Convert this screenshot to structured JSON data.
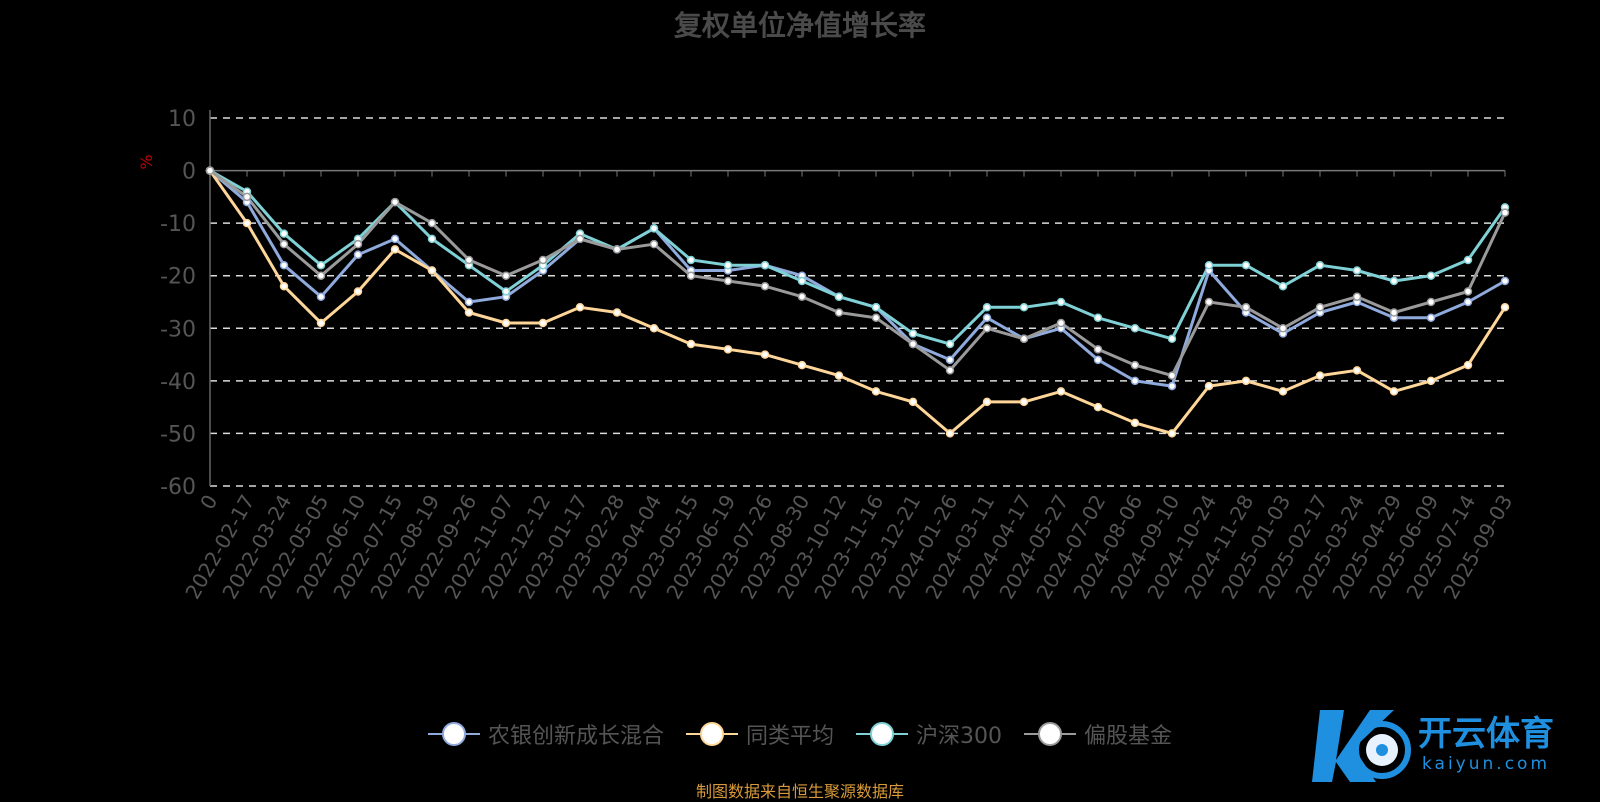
{
  "chart_data": {
    "type": "line",
    "title": "复权单位净值增长率",
    "ylabel": "%",
    "ylim": [
      -60,
      10
    ],
    "yticks": [
      10,
      0,
      -10,
      -20,
      -30,
      -40,
      -50,
      -60
    ],
    "grid": true,
    "x": [
      "0",
      "2022-02-17",
      "2022-03-24",
      "2022-05-05",
      "2022-06-10",
      "2022-07-15",
      "2022-08-19",
      "2022-09-26",
      "2022-11-07",
      "2022-12-12",
      "2023-01-17",
      "2023-02-28",
      "2023-04-04",
      "2023-05-15",
      "2023-06-19",
      "2023-07-26",
      "2023-08-30",
      "2023-10-12",
      "2023-11-16",
      "2023-12-21",
      "2024-01-26",
      "2024-03-11",
      "2024-04-17",
      "2024-05-27",
      "2024-07-02",
      "2024-08-06",
      "2024-09-10",
      "2024-10-24",
      "2024-11-28",
      "2025-01-03",
      "2025-02-17",
      "2025-03-24",
      "2025-04-29",
      "2025-06-09",
      "2025-07-14",
      "2025-09-03"
    ],
    "series": [
      {
        "name": "农银创新成长混合",
        "color": "#8faadc",
        "values": [
          0,
          -6,
          -18,
          -24,
          -16,
          -13,
          -19,
          -25,
          -24,
          -19,
          -13,
          -15,
          -11,
          -19,
          -19,
          -18,
          -20,
          -24,
          -26,
          -33,
          -36,
          -28,
          -32,
          -30,
          -36,
          -40,
          -41,
          -19,
          -27,
          -31,
          -27,
          -25,
          -28,
          -28,
          -25,
          -21
        ]
      },
      {
        "name": "同类平均",
        "color": "#ffd699",
        "values": [
          0,
          -10,
          -22,
          -29,
          -23,
          -15,
          -19,
          -27,
          -29,
          -29,
          -26,
          -27,
          -30,
          -33,
          -34,
          -35,
          -37,
          -39,
          -42,
          -44,
          -50,
          -44,
          -44,
          -42,
          -45,
          -48,
          -50,
          -41,
          -40,
          -42,
          -39,
          -38,
          -42,
          -40,
          -37,
          -26
        ]
      },
      {
        "name": "沪深300",
        "color": "#7fd1d6",
        "values": [
          0,
          -4,
          -12,
          -18,
          -13,
          -6,
          -13,
          -18,
          -23,
          -18,
          -12,
          -15,
          -11,
          -17,
          -18,
          -18,
          -21,
          -24,
          -26,
          -31,
          -33,
          -26,
          -26,
          -25,
          -28,
          -30,
          -32,
          -18,
          -18,
          -22,
          -18,
          -19,
          -21,
          -20,
          -17,
          -7
        ]
      },
      {
        "name": "偏股基金",
        "color": "#9a9a9a",
        "values": [
          0,
          -5,
          -14,
          -20,
          -14,
          -6,
          -10,
          -17,
          -20,
          -17,
          -13,
          -15,
          -14,
          -20,
          -21,
          -22,
          -24,
          -27,
          -28,
          -33,
          -38,
          -30,
          -32,
          -29,
          -34,
          -37,
          -39,
          -25,
          -26,
          -30,
          -26,
          -24,
          -27,
          -25,
          -23,
          -8
        ]
      }
    ]
  },
  "footer": {
    "source": "制图数据来自恒生聚源数据库"
  },
  "logo": {
    "name": "开云体育",
    "domain": "kaiyun.com"
  }
}
